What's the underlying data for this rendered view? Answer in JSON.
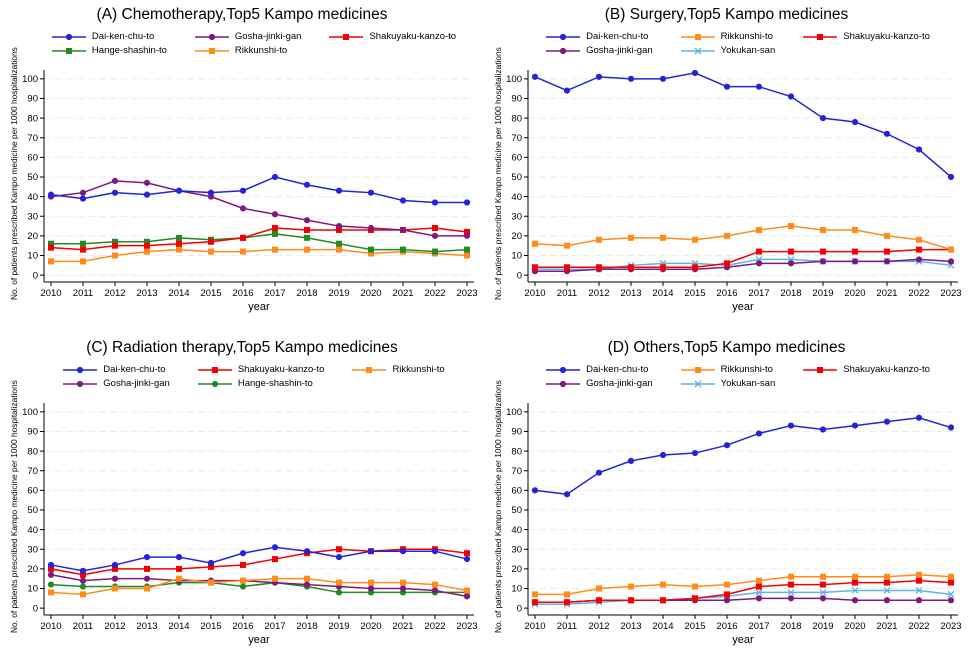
{
  "figure": {
    "y_axis_label": "No. of patients prescribed Kampo medicine per 1000 hospitalizations",
    "x_axis_label": "year",
    "axis_color": "#000000",
    "grid_color": "#ececec",
    "background": "#ffffff",
    "medicine_colors": {
      "Dai-ken-chu-to": "#2424d6",
      "Gosha-jinki-gan": "#7e1a7e",
      "Shakuyaku-kanzo-to": "#f40000",
      "Hange-shashin-to": "#228b22",
      "Rikkunshi-to": "#ff8c1a",
      "Yokukan-san": "#5fb3e6"
    }
  },
  "chart_data": [
    {
      "type": "line",
      "title": "(A) Chemotherapy,Top5 Kampo medicines",
      "xlabel": "year",
      "ylabel": "No. of patients prescribed Kampo medicine per 1000 hospitalizations",
      "x": [
        2010,
        2011,
        2012,
        2013,
        2014,
        2015,
        2016,
        2017,
        2018,
        2019,
        2020,
        2021,
        2022,
        2023
      ],
      "ylim": [
        0,
        100
      ],
      "yticks": [
        0,
        10,
        20,
        30,
        40,
        50,
        60,
        70,
        80,
        90,
        100
      ],
      "grid": true,
      "legend_position": "top",
      "series": [
        {
          "name": "Dai-ken-chu-to",
          "color": "#2424d6",
          "marker": "circle",
          "values": [
            41,
            39,
            42,
            41,
            43,
            42,
            43,
            50,
            46,
            43,
            42,
            38,
            37,
            37
          ]
        },
        {
          "name": "Gosha-jinki-gan",
          "color": "#7e1a7e",
          "marker": "circle",
          "values": [
            40,
            42,
            48,
            47,
            43,
            40,
            34,
            31,
            28,
            25,
            24,
            23,
            20,
            20
          ]
        },
        {
          "name": "Shakuyaku-kanzo-to",
          "color": "#f40000",
          "marker": "square",
          "values": [
            14,
            13,
            15,
            15,
            16,
            17,
            19,
            24,
            23,
            23,
            23,
            23,
            24,
            22
          ]
        },
        {
          "name": "Hange-shashin-to",
          "color": "#228b22",
          "marker": "square",
          "values": [
            16,
            16,
            17,
            17,
            19,
            18,
            19,
            21,
            19,
            16,
            13,
            13,
            12,
            13
          ]
        },
        {
          "name": "Rikkunshi-to",
          "color": "#ff8c1a",
          "marker": "square",
          "values": [
            7,
            7,
            10,
            12,
            13,
            12,
            12,
            13,
            13,
            13,
            11,
            12,
            11,
            10
          ]
        }
      ]
    },
    {
      "type": "line",
      "title": "(B) Surgery,Top5 Kampo medicines",
      "xlabel": "year",
      "ylabel": "No. of patients prescribed Kampo medicine per 1000 hospitalizations",
      "x": [
        2010,
        2011,
        2012,
        2013,
        2014,
        2015,
        2016,
        2017,
        2018,
        2019,
        2020,
        2021,
        2022,
        2023
      ],
      "ylim": [
        0,
        100
      ],
      "yticks": [
        0,
        10,
        20,
        30,
        40,
        50,
        60,
        70,
        80,
        90,
        100
      ],
      "grid": true,
      "legend_position": "top",
      "series": [
        {
          "name": "Dai-ken-chu-to",
          "color": "#2424d6",
          "marker": "circle",
          "values": [
            101,
            94,
            101,
            100,
            100,
            103,
            96,
            96,
            91,
            80,
            78,
            72,
            64,
            50
          ]
        },
        {
          "name": "Rikkunshi-to",
          "color": "#ff8c1a",
          "marker": "square",
          "values": [
            16,
            15,
            18,
            19,
            19,
            18,
            20,
            23,
            25,
            23,
            23,
            20,
            18,
            13
          ]
        },
        {
          "name": "Shakuyaku-kanzo-to",
          "color": "#f40000",
          "marker": "square",
          "values": [
            4,
            4,
            4,
            4,
            4,
            4,
            6,
            12,
            12,
            12,
            12,
            12,
            13,
            13
          ]
        },
        {
          "name": "Gosha-jinki-gan",
          "color": "#7e1a7e",
          "marker": "circle",
          "values": [
            2,
            2,
            3,
            3,
            3,
            3,
            4,
            6,
            6,
            7,
            7,
            7,
            8,
            7
          ]
        },
        {
          "name": "Yokukan-san",
          "color": "#5fb3e6",
          "marker": "x",
          "values": [
            3,
            3,
            3,
            5,
            6,
            6,
            5,
            8,
            8,
            7,
            7,
            7,
            7,
            5
          ]
        }
      ]
    },
    {
      "type": "line",
      "title": "(C) Radiation therapy,Top5 Kampo medicines",
      "xlabel": "year",
      "ylabel": "No. of patients prescribed Kampo medicine per 1000 hospitalizations",
      "x": [
        2010,
        2011,
        2012,
        2013,
        2014,
        2015,
        2016,
        2017,
        2018,
        2019,
        2020,
        2021,
        2022,
        2023
      ],
      "ylim": [
        0,
        100
      ],
      "yticks": [
        0,
        10,
        20,
        30,
        40,
        50,
        60,
        70,
        80,
        90,
        100
      ],
      "grid": true,
      "legend_position": "top",
      "series": [
        {
          "name": "Dai-ken-chu-to",
          "color": "#2424d6",
          "marker": "circle",
          "values": [
            22,
            19,
            22,
            26,
            26,
            23,
            28,
            31,
            29,
            26,
            29,
            29,
            29,
            25
          ]
        },
        {
          "name": "Shakuyaku-kanzo-to",
          "color": "#f40000",
          "marker": "square",
          "values": [
            20,
            17,
            20,
            20,
            20,
            21,
            22,
            25,
            28,
            30,
            29,
            30,
            30,
            28
          ]
        },
        {
          "name": "Rikkunshi-to",
          "color": "#ff8c1a",
          "marker": "square",
          "values": [
            8,
            7,
            10,
            10,
            15,
            13,
            14,
            15,
            15,
            13,
            13,
            13,
            12,
            9
          ]
        },
        {
          "name": "Gosha-jinki-gan",
          "color": "#7e1a7e",
          "marker": "circle",
          "values": [
            17,
            14,
            15,
            15,
            14,
            14,
            14,
            13,
            12,
            11,
            10,
            10,
            9,
            6
          ]
        },
        {
          "name": "Hange-shashin-to",
          "color": "#228b22",
          "marker": "circle",
          "values": [
            12,
            11,
            11,
            11,
            13,
            13,
            11,
            13,
            11,
            8,
            8,
            8,
            8,
            8
          ]
        }
      ]
    },
    {
      "type": "line",
      "title": "(D) Others,Top5 Kampo medicines",
      "xlabel": "year",
      "ylabel": "No. of patients prescribed Kampo medicine per 1000 hospitalizations",
      "x": [
        2010,
        2011,
        2012,
        2013,
        2014,
        2015,
        2016,
        2017,
        2018,
        2019,
        2020,
        2021,
        2022,
        2023
      ],
      "ylim": [
        0,
        100
      ],
      "yticks": [
        0,
        10,
        20,
        30,
        40,
        50,
        60,
        70,
        80,
        90,
        100
      ],
      "grid": true,
      "legend_position": "top",
      "series": [
        {
          "name": "Dai-ken-chu-to",
          "color": "#2424d6",
          "marker": "circle",
          "values": [
            60,
            58,
            69,
            75,
            78,
            79,
            83,
            89,
            93,
            91,
            93,
            95,
            97,
            92
          ]
        },
        {
          "name": "Rikkunshi-to",
          "color": "#ff8c1a",
          "marker": "square",
          "values": [
            7,
            7,
            10,
            11,
            12,
            11,
            12,
            14,
            16,
            16,
            16,
            16,
            17,
            16
          ]
        },
        {
          "name": "Shakuyaku-kanzo-to",
          "color": "#f40000",
          "marker": "square",
          "values": [
            3,
            3,
            4,
            4,
            4,
            5,
            7,
            11,
            12,
            12,
            13,
            13,
            14,
            13
          ]
        },
        {
          "name": "Gosha-jinki-gan",
          "color": "#7e1a7e",
          "marker": "circle",
          "values": [
            3,
            3,
            4,
            4,
            4,
            4,
            4,
            5,
            5,
            5,
            4,
            4,
            4,
            4
          ]
        },
        {
          "name": "Yokukan-san",
          "color": "#5fb3e6",
          "marker": "x",
          "values": [
            2,
            2,
            3,
            4,
            4,
            5,
            6,
            8,
            8,
            8,
            9,
            9,
            9,
            7
          ]
        }
      ]
    }
  ]
}
